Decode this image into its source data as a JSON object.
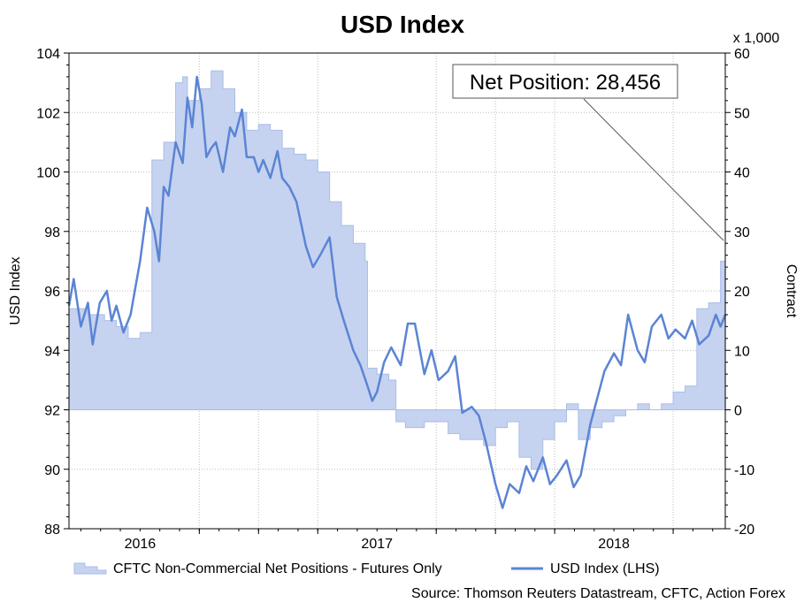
{
  "chart_data": {
    "type": "area",
    "title": "USD Index",
    "ylabel_left": "USD Index",
    "ylabel_right": "Contract",
    "right_unit": "x 1,000",
    "x_ticks": [
      "2016",
      "2017",
      "2018"
    ],
    "y_left_ticks": [
      "88",
      "90",
      "92",
      "94",
      "96",
      "98",
      "100",
      "102",
      "104"
    ],
    "y_right_ticks": [
      "-20",
      "-10",
      "0",
      "10",
      "20",
      "30",
      "40",
      "50",
      "60"
    ],
    "y_left_range": [
      88,
      104
    ],
    "y_right_range": [
      -20,
      60
    ],
    "x_range": [
      2015.7,
      2018.47
    ],
    "grid": true,
    "annotation": "Net Position: 28,456",
    "source": "Source: Thomson Reuters Datastream, CFTC, Action Forex",
    "colors": {
      "area": "#c5d3f0",
      "area_edge": "#a9bde8",
      "line": "#5b84d4"
    },
    "series": [
      {
        "name": "CFTC Non-Commercial Net Positions - Futures Only",
        "axis": "right",
        "x": [
          2015.7,
          2015.78,
          2015.85,
          2015.9,
          2015.95,
          2016.0,
          2016.05,
          2016.1,
          2016.15,
          2016.18,
          2016.2,
          2016.25,
          2016.3,
          2016.35,
          2016.4,
          2016.45,
          2016.5,
          2016.55,
          2016.6,
          2016.65,
          2016.7,
          2016.75,
          2016.8,
          2016.85,
          2016.9,
          2016.95,
          2016.96,
          2017.0,
          2017.05,
          2017.08,
          2017.12,
          2017.2,
          2017.3,
          2017.35,
          2017.45,
          2017.5,
          2017.55,
          2017.6,
          2017.65,
          2017.7,
          2017.75,
          2017.8,
          2017.85,
          2017.9,
          2017.95,
          2018.0,
          2018.05,
          2018.1,
          2018.15,
          2018.2,
          2018.25,
          2018.3,
          2018.35,
          2018.4,
          2018.42,
          2018.45,
          2018.47
        ],
        "values": [
          17,
          16,
          15,
          14,
          12,
          13,
          42,
          45,
          55,
          56,
          52,
          54,
          57,
          54,
          50,
          47,
          48,
          47,
          44,
          43,
          42,
          40,
          35,
          31,
          28,
          25,
          7,
          6,
          5,
          -2,
          -3,
          -2,
          -4,
          -5,
          -6,
          -3,
          -2,
          -8,
          -10,
          -5,
          -2,
          1,
          -5,
          -3,
          -2,
          -1,
          0,
          1,
          0,
          1,
          3,
          4,
          17,
          18,
          18,
          25,
          28.456
        ]
      },
      {
        "name": "USD Index (LHS)",
        "axis": "left",
        "x": [
          2015.7,
          2015.72,
          2015.75,
          2015.78,
          2015.8,
          2015.83,
          2015.86,
          2015.88,
          2015.9,
          2015.93,
          2015.96,
          2016.0,
          2016.03,
          2016.06,
          2016.08,
          2016.1,
          2016.12,
          2016.15,
          2016.18,
          2016.2,
          2016.22,
          2016.24,
          2016.26,
          2016.28,
          2016.3,
          2016.32,
          2016.35,
          2016.38,
          2016.4,
          2016.43,
          2016.45,
          2016.48,
          2016.5,
          2016.52,
          2016.55,
          2016.58,
          2016.6,
          2016.63,
          2016.66,
          2016.7,
          2016.73,
          2016.76,
          2016.8,
          2016.83,
          2016.86,
          2016.9,
          2016.93,
          2016.96,
          2016.98,
          2017.0,
          2017.03,
          2017.06,
          2017.1,
          2017.13,
          2017.16,
          2017.2,
          2017.23,
          2017.26,
          2017.3,
          2017.33,
          2017.36,
          2017.4,
          2017.43,
          2017.46,
          2017.5,
          2017.53,
          2017.56,
          2017.6,
          2017.63,
          2017.66,
          2017.7,
          2017.73,
          2017.76,
          2017.8,
          2017.83,
          2017.86,
          2017.9,
          2017.93,
          2017.96,
          2018.0,
          2018.03,
          2018.06,
          2018.1,
          2018.13,
          2018.16,
          2018.2,
          2018.23,
          2018.26,
          2018.3,
          2018.33,
          2018.36,
          2018.4,
          2018.43,
          2018.45,
          2018.47
        ],
        "values": [
          95.5,
          96.4,
          94.8,
          95.6,
          94.2,
          95.6,
          96.0,
          95.0,
          95.5,
          94.6,
          95.2,
          97.0,
          98.8,
          98.0,
          97.0,
          99.5,
          99.2,
          101.0,
          100.3,
          102.5,
          101.5,
          103.2,
          102.3,
          100.5,
          100.8,
          101.0,
          100.0,
          101.5,
          101.2,
          102.1,
          100.5,
          100.5,
          100.0,
          100.4,
          99.8,
          100.7,
          99.8,
          99.5,
          99.0,
          97.5,
          96.8,
          97.2,
          97.8,
          95.8,
          95.0,
          94.0,
          93.5,
          92.8,
          92.3,
          92.6,
          93.6,
          94.1,
          93.5,
          94.9,
          94.9,
          93.2,
          94.0,
          93.0,
          93.3,
          93.8,
          91.9,
          92.1,
          91.8,
          90.9,
          89.5,
          88.7,
          89.5,
          89.2,
          90.1,
          89.6,
          90.4,
          89.5,
          89.8,
          90.3,
          89.4,
          89.8,
          91.5,
          92.4,
          93.3,
          93.9,
          93.5,
          95.2,
          94.0,
          93.6,
          94.8,
          95.2,
          94.4,
          94.7,
          94.4,
          95.0,
          94.2,
          94.5,
          95.2,
          94.8,
          95.2
        ]
      }
    ]
  }
}
